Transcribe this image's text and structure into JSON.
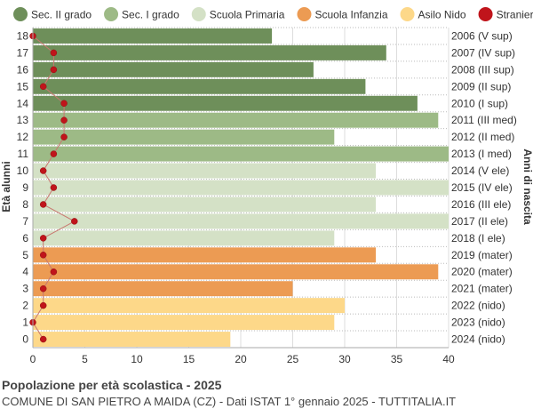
{
  "chart_data": {
    "type": "bar",
    "orientation": "horizontal",
    "title": "Popolazione per età scolastica - 2025",
    "subtitle": "COMUNE DI SAN PIETRO A MAIDA (CZ) - Dati ISTAT 1° gennaio 2025 - TUTTITALIA.IT",
    "ylabel_left": "Età alunni",
    "ylabel_right": "Anni di nascita",
    "xlim": [
      0,
      40
    ],
    "x_ticks": [
      0,
      5,
      10,
      15,
      20,
      25,
      30,
      35,
      40
    ],
    "legend_position": "top",
    "legend": [
      {
        "name": "Sec. II grado",
        "color": "#6e8f5a"
      },
      {
        "name": "Sec. I grado",
        "color": "#9dba86"
      },
      {
        "name": "Scuola Primaria",
        "color": "#d4e1c6"
      },
      {
        "name": "Scuola Infanzia",
        "color": "#ec9b53"
      },
      {
        "name": "Asilo Nido",
        "color": "#fdd889"
      },
      {
        "name": "Stranieri",
        "color": "#c0141b"
      }
    ],
    "rows": [
      {
        "age": "18",
        "birth": "2006 (V sup)",
        "value": 23,
        "stranieri": 0,
        "group": 0
      },
      {
        "age": "17",
        "birth": "2007 (IV sup)",
        "value": 34,
        "stranieri": 2,
        "group": 0
      },
      {
        "age": "16",
        "birth": "2008 (III sup)",
        "value": 27,
        "stranieri": 2,
        "group": 0
      },
      {
        "age": "15",
        "birth": "2009 (II sup)",
        "value": 32,
        "stranieri": 1,
        "group": 0
      },
      {
        "age": "14",
        "birth": "2010 (I sup)",
        "value": 37,
        "stranieri": 3,
        "group": 0
      },
      {
        "age": "13",
        "birth": "2011 (III med)",
        "value": 39,
        "stranieri": 3,
        "group": 1
      },
      {
        "age": "12",
        "birth": "2012 (II med)",
        "value": 29,
        "stranieri": 3,
        "group": 1
      },
      {
        "age": "11",
        "birth": "2013 (I med)",
        "value": 40,
        "stranieri": 2,
        "group": 1
      },
      {
        "age": "10",
        "birth": "2014 (V ele)",
        "value": 33,
        "stranieri": 1,
        "group": 2
      },
      {
        "age": "9",
        "birth": "2015 (IV ele)",
        "value": 40,
        "stranieri": 2,
        "group": 2
      },
      {
        "age": "8",
        "birth": "2016 (III ele)",
        "value": 33,
        "stranieri": 1,
        "group": 2
      },
      {
        "age": "7",
        "birth": "2017 (II ele)",
        "value": 40,
        "stranieri": 4,
        "group": 2
      },
      {
        "age": "6",
        "birth": "2018 (I ele)",
        "value": 29,
        "stranieri": 1,
        "group": 2
      },
      {
        "age": "5",
        "birth": "2019 (mater)",
        "value": 33,
        "stranieri": 1,
        "group": 3
      },
      {
        "age": "4",
        "birth": "2020 (mater)",
        "value": 39,
        "stranieri": 2,
        "group": 3
      },
      {
        "age": "3",
        "birth": "2021 (mater)",
        "value": 25,
        "stranieri": 1,
        "group": 3
      },
      {
        "age": "2",
        "birth": "2022 (nido)",
        "value": 30,
        "stranieri": 1,
        "group": 4
      },
      {
        "age": "1",
        "birth": "2023 (nido)",
        "value": 29,
        "stranieri": 0,
        "group": 4
      },
      {
        "age": "0",
        "birth": "2024 (nido)",
        "value": 19,
        "stranieri": 1,
        "group": 4
      }
    ],
    "stranieri_line_color": "#c87870",
    "grid": true
  }
}
